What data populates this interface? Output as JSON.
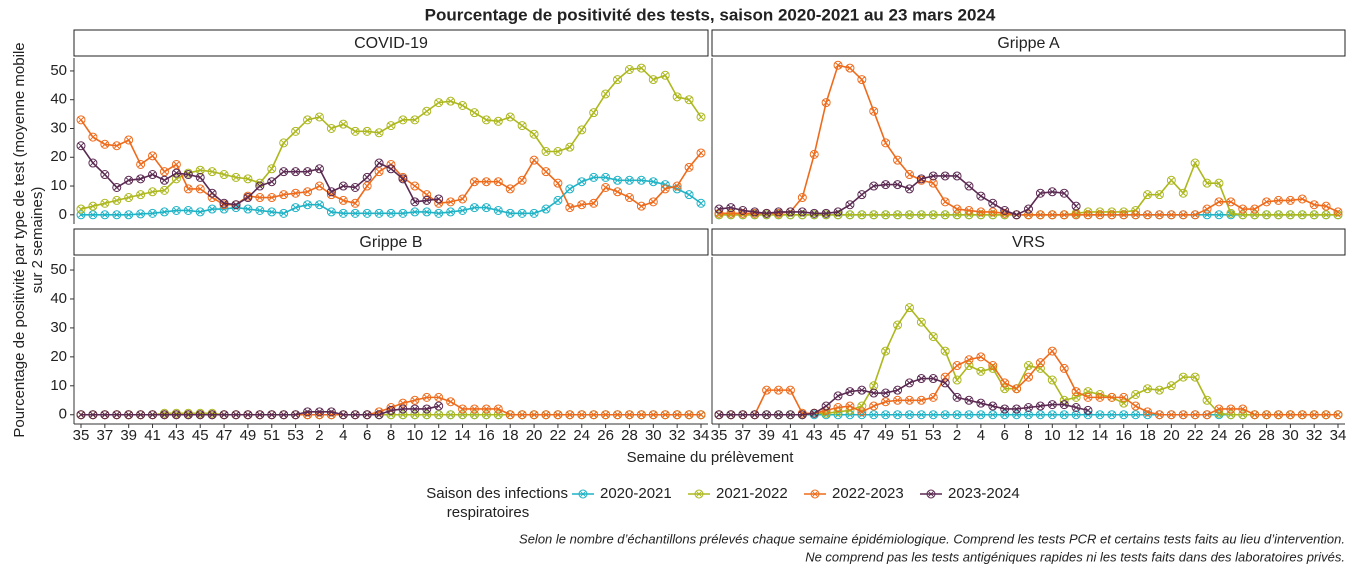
{
  "title": "Pourcentage de positivité des tests, saison 2020-2021 au 23 mars 2024",
  "y_label": [
    "Pourcentage de positivité par type de test (moyenne mobile",
    "sur 2 semaines)"
  ],
  "x_label": "Semaine du prélèvement",
  "legend_title": [
    "Saison des infections",
    "respiratoires"
  ],
  "notes": [
    "Selon le nombre d’échantillons prélevés chaque semaine épidémiologique. Comprend les tests PCR et certains tests faits au lieu d’intervention.",
    "Ne comprend pas les tests antigéniques rapides ni les tests faits dans des laboratoires privés."
  ],
  "chart_data": [
    {
      "type": "line",
      "title": "COVID-19",
      "ylim": [
        -3.2,
        54.5
      ],
      "yticks": [
        0,
        10,
        20,
        30,
        40,
        50
      ],
      "series": [
        {
          "name": "2020-2021",
          "color": "#1fb3c6",
          "values": [
            0,
            0,
            0,
            0,
            0,
            0.3,
            0.5,
            1,
            1.5,
            1.5,
            1,
            2,
            2,
            2.5,
            2,
            1.5,
            1,
            0.5,
            2.5,
            3.5,
            3.5,
            1,
            0.5,
            0.5,
            0.5,
            0.5,
            0.5,
            0.5,
            1,
            1,
            0.5,
            1,
            1.5,
            2.5,
            2.5,
            1.5,
            0.5,
            0.5,
            0.5,
            2,
            5,
            9,
            11.5,
            13,
            13,
            12,
            12,
            12,
            11.5,
            10.5,
            9,
            7,
            4
          ]
        },
        {
          "name": "2021-2022",
          "color": "#adb81e",
          "values": [
            2,
            3,
            4,
            5,
            6,
            7,
            8,
            8.5,
            12.5,
            14.5,
            15.5,
            15,
            14,
            13,
            12.5,
            11,
            16,
            25,
            29,
            33,
            34,
            30,
            31.5,
            29,
            29,
            28.5,
            31,
            33,
            33,
            36,
            39,
            39.5,
            38,
            35.5,
            33,
            32.5,
            34,
            31,
            28,
            22,
            22,
            23.5,
            29.5,
            35.5,
            42,
            47,
            50.5,
            51,
            47,
            48.5,
            41,
            40,
            34
          ]
        },
        {
          "name": "2022-2023",
          "color": "#ee6b1c",
          "values": [
            33,
            27,
            24.5,
            24,
            26,
            17.5,
            20.5,
            15,
            17.5,
            9,
            9,
            6,
            3.5,
            3.5,
            6.5,
            6,
            6,
            7,
            7.5,
            8,
            10,
            7,
            5,
            4,
            10,
            15,
            17.5,
            13,
            10,
            7,
            4,
            4.5,
            5.5,
            11.5,
            11.5,
            11.5,
            9,
            12,
            19,
            15,
            11,
            2.5,
            3.5,
            4,
            9.5,
            8,
            6,
            3,
            4.5,
            9,
            10,
            16.5,
            21.5
          ]
        },
        {
          "name": "2023-2024",
          "color": "#5b2a52",
          "values": [
            24,
            18,
            14,
            9.5,
            12,
            12.5,
            14,
            12,
            14.5,
            14,
            13,
            7.5,
            4,
            3.5,
            6,
            10,
            11.5,
            15,
            15,
            15,
            16,
            8,
            10,
            9.5,
            13,
            18,
            16,
            12.5,
            4.5,
            5,
            5.5,
            null,
            null,
            null,
            null,
            null,
            null,
            null,
            null,
            null,
            null,
            null,
            null,
            null,
            null,
            null,
            null,
            null,
            null,
            null,
            null,
            null,
            null
          ]
        }
      ]
    },
    {
      "type": "line",
      "title": "Grippe A",
      "ylim": [
        -3.2,
        54.5
      ],
      "series": [
        {
          "color": "#1fb3c6",
          "values": [
            0,
            0,
            0,
            0,
            0,
            0,
            0,
            0,
            0,
            0,
            0,
            0,
            0,
            0,
            0,
            0,
            0,
            0,
            0,
            0,
            0,
            0,
            0,
            0,
            0,
            0,
            0,
            0,
            0,
            0,
            0,
            0,
            0,
            0,
            0,
            0,
            0,
            0,
            0,
            0,
            0,
            0,
            0,
            0,
            0,
            0,
            0,
            0,
            0,
            0,
            0,
            0,
            0
          ]
        },
        {
          "color": "#adb81e",
          "values": [
            0,
            0,
            0,
            0,
            0,
            0,
            0,
            0,
            0,
            0,
            0,
            0,
            0,
            0,
            0,
            0,
            0,
            0,
            0,
            0,
            0,
            0,
            0,
            0,
            0,
            0,
            0,
            0,
            0,
            0,
            0.5,
            1,
            1,
            1,
            1,
            1.5,
            7,
            7,
            12,
            7.5,
            18,
            11,
            11,
            0.5,
            0,
            0,
            0,
            0,
            0,
            0,
            0,
            0,
            0
          ]
        },
        {
          "color": "#ee6b1c",
          "values": [
            0.5,
            0.5,
            0.5,
            0.5,
            0.5,
            0.5,
            1,
            6,
            21,
            39,
            52,
            51,
            47,
            36,
            25,
            19,
            14,
            12,
            11,
            4.5,
            2,
            1.5,
            1,
            1,
            0.5,
            0,
            0,
            0,
            0,
            0,
            0,
            0,
            0,
            0,
            0,
            0,
            0,
            0,
            0,
            0,
            0,
            2,
            4.5,
            4.5,
            2,
            2,
            4.5,
            5,
            5,
            5.5,
            3.5,
            3,
            1
          ]
        },
        {
          "color": "#5b2a52",
          "values": [
            2,
            2.5,
            1.5,
            1,
            0.5,
            1,
            1,
            1,
            0.5,
            0.5,
            1,
            3.5,
            7,
            10,
            10.5,
            10.5,
            9,
            12.5,
            13.5,
            13.5,
            13.5,
            10,
            6.5,
            4,
            1.5,
            0,
            2,
            7.5,
            8,
            7.5,
            3,
            null,
            null,
            null,
            null,
            null,
            null,
            null,
            null,
            null,
            null,
            null,
            null,
            null,
            null,
            null,
            null,
            null,
            null,
            null,
            null,
            null,
            null
          ]
        }
      ]
    },
    {
      "type": "line",
      "title": "Grippe B",
      "ylim": [
        -3.2,
        54.5
      ],
      "yticks": [
        0,
        10,
        20,
        30,
        40,
        50
      ],
      "categories": [
        35,
        null,
        37,
        null,
        39,
        null,
        41,
        null,
        43,
        null,
        45,
        null,
        47,
        null,
        49,
        null,
        51,
        null,
        53,
        null,
        2,
        null,
        4,
        null,
        6,
        null,
        8,
        null,
        10,
        null,
        12,
        null,
        14,
        null,
        16,
        null,
        18,
        null,
        20,
        null,
        22,
        null,
        24,
        null,
        26,
        null,
        28,
        null,
        30,
        null,
        32,
        null,
        34
      ],
      "series": [
        {
          "color": "#1fb3c6",
          "values": [
            0,
            0,
            0,
            0,
            0,
            0,
            0,
            0,
            0,
            0,
            0,
            0,
            0,
            0,
            0,
            0,
            0,
            0,
            0,
            0,
            0,
            0,
            0,
            0,
            0,
            0,
            0,
            0,
            0,
            0,
            0,
            0,
            0,
            0,
            0,
            0,
            0,
            0,
            0,
            0,
            0,
            0,
            0,
            0,
            0,
            0,
            0,
            0,
            0,
            0,
            0,
            0,
            0
          ]
        },
        {
          "color": "#adb81e",
          "values": [
            0,
            0,
            0,
            0,
            0,
            0,
            0,
            0.5,
            0.5,
            0.5,
            0.5,
            0.5,
            0,
            0,
            0,
            0,
            0,
            0,
            0,
            0,
            0,
            0,
            0,
            0,
            0,
            0,
            0,
            0,
            0,
            0,
            0,
            0,
            0,
            0,
            0,
            0,
            0,
            0,
            0,
            0,
            0,
            0,
            0,
            0,
            0,
            0,
            0,
            0,
            0,
            0,
            0,
            0,
            0
          ]
        },
        {
          "color": "#ee6b1c",
          "values": [
            0,
            0,
            0,
            0,
            0,
            0,
            0,
            0,
            0,
            0,
            0,
            0,
            0,
            0,
            0,
            0,
            0,
            0,
            0,
            0,
            0,
            0,
            0,
            0,
            0,
            1,
            2.5,
            4,
            5,
            6,
            6,
            4.5,
            2,
            2,
            2,
            2,
            0,
            0,
            0,
            0,
            0,
            0,
            0,
            0,
            0,
            0,
            0,
            0,
            0,
            0,
            0,
            0,
            0
          ]
        },
        {
          "color": "#5b2a52",
          "values": [
            0,
            0,
            0,
            0,
            0,
            0,
            0,
            0,
            0,
            0,
            0,
            0,
            0,
            0,
            0,
            0,
            0,
            0,
            0,
            1,
            1,
            1,
            0,
            0,
            0,
            0,
            1.5,
            2,
            2,
            2,
            3,
            null,
            null,
            null,
            null,
            null,
            null,
            null,
            null,
            null,
            null,
            null,
            null,
            null,
            null,
            null,
            null,
            null,
            null,
            null,
            null,
            null,
            null
          ]
        }
      ]
    },
    {
      "type": "line",
      "title": "VRS",
      "ylim": [
        -3.2,
        54.5
      ],
      "categories": [
        35,
        null,
        37,
        null,
        39,
        null,
        41,
        null,
        43,
        null,
        45,
        null,
        47,
        null,
        49,
        null,
        51,
        null,
        53,
        null,
        2,
        null,
        4,
        null,
        6,
        null,
        8,
        null,
        10,
        null,
        12,
        null,
        14,
        null,
        16,
        null,
        18,
        null,
        20,
        null,
        22,
        null,
        24,
        null,
        26,
        null,
        28,
        null,
        30,
        null,
        32,
        null,
        34
      ],
      "series": [
        {
          "color": "#1fb3c6",
          "values": [
            0,
            0,
            0,
            0,
            0,
            0,
            0,
            0,
            0,
            0,
            0,
            0,
            0,
            0,
            0,
            0,
            0,
            0,
            0,
            0,
            0,
            0,
            0,
            0,
            0,
            0,
            0,
            0,
            0,
            0,
            0,
            0,
            0,
            0,
            0,
            0,
            0,
            0,
            0,
            0,
            0,
            0,
            0,
            0,
            0,
            0,
            0,
            0,
            0,
            0,
            0,
            0,
            0
          ]
        },
        {
          "color": "#adb81e",
          "values": [
            0,
            0,
            0,
            0,
            0,
            0,
            0,
            0,
            0.5,
            0.5,
            1,
            1.5,
            3,
            10,
            22,
            31,
            37,
            32,
            27,
            22,
            12,
            17,
            15,
            16,
            9,
            9,
            17,
            16,
            12,
            5,
            6,
            8,
            7,
            6,
            4,
            7,
            9,
            8.5,
            10,
            13,
            13,
            5,
            0.5,
            0,
            0,
            0,
            0,
            0,
            0,
            0,
            0,
            0,
            0
          ]
        },
        {
          "color": "#ee6b1c",
          "values": [
            0,
            0,
            0,
            0,
            8.5,
            8.5,
            8.5,
            0.5,
            0.5,
            1.5,
            2.5,
            3,
            1,
            3,
            4.5,
            5,
            5,
            5,
            6,
            13,
            17,
            19,
            20,
            17,
            11,
            9,
            13,
            18,
            22,
            16,
            8,
            6,
            6,
            6,
            6,
            3,
            1,
            0,
            0,
            0,
            0,
            0,
            2,
            2,
            2,
            0,
            0,
            0,
            0,
            0,
            0,
            0,
            0
          ]
        },
        {
          "color": "#5b2a52",
          "values": [
            0,
            0,
            0,
            0,
            0,
            0,
            0,
            0,
            0.5,
            3,
            6.5,
            8,
            8.5,
            7.5,
            7.5,
            8.5,
            11,
            12.5,
            12.5,
            11,
            6,
            5,
            4,
            3,
            2,
            2,
            2.5,
            3,
            3.5,
            3.5,
            2.5,
            1.5,
            null,
            null,
            null,
            null,
            null,
            null,
            null,
            null,
            null,
            null,
            null,
            null,
            null,
            null,
            null,
            null,
            null,
            null,
            null,
            null,
            null
          ]
        }
      ]
    }
  ]
}
